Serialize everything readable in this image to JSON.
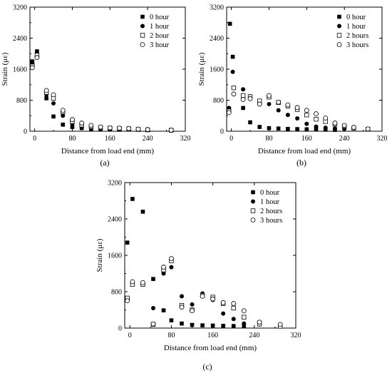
{
  "chart_data": [
    {
      "type": "scatter",
      "panel_label": "(a)",
      "xlabel": "Distance from load end (mm)",
      "ylabel": "Strain (με)",
      "xlim": [
        -10,
        320
      ],
      "ylim": [
        0,
        3200
      ],
      "xticks": [
        "0",
        "80",
        "160",
        "240",
        "320"
      ],
      "yticks": [
        "0",
        "800",
        "1600",
        "2400",
        "3200"
      ],
      "legend_position": "top-right",
      "series": [
        {
          "name": "0 hour",
          "marker": "filled-square",
          "points": [
            [
              -5,
              1800
            ],
            [
              5,
              2060
            ],
            [
              25,
              850
            ],
            [
              40,
              380
            ],
            [
              60,
              170
            ],
            [
              80,
              110
            ],
            [
              100,
              80
            ],
            [
              120,
              60
            ],
            [
              140,
              50
            ],
            [
              160,
              45
            ],
            [
              180,
              40
            ]
          ]
        },
        {
          "name": "1 hour",
          "marker": "filled-circle",
          "points": [
            [
              -5,
              1760
            ],
            [
              5,
              2000
            ],
            [
              25,
              950
            ],
            [
              40,
              720
            ],
            [
              60,
              400
            ],
            [
              80,
              200
            ],
            [
              100,
              120
            ],
            [
              120,
              90
            ],
            [
              140,
              70
            ],
            [
              160,
              60
            ],
            [
              180,
              50
            ],
            [
              200,
              45
            ]
          ]
        },
        {
          "name": "2 hour",
          "marker": "open-square",
          "points": [
            [
              -5,
              1680
            ],
            [
              5,
              1960
            ],
            [
              25,
              1000
            ],
            [
              40,
              850
            ],
            [
              60,
              500
            ],
            [
              80,
              250
            ],
            [
              100,
              160
            ],
            [
              120,
              120
            ],
            [
              140,
              95
            ],
            [
              160,
              80
            ],
            [
              180,
              70
            ],
            [
              200,
              60
            ],
            [
              220,
              45
            ],
            [
              240,
              35
            ],
            [
              290,
              25
            ]
          ]
        },
        {
          "name": "3 hour",
          "marker": "open-circle",
          "points": [
            [
              -5,
              1640
            ],
            [
              5,
              1900
            ],
            [
              25,
              1050
            ],
            [
              40,
              940
            ],
            [
              60,
              540
            ],
            [
              80,
              300
            ],
            [
              100,
              210
            ],
            [
              120,
              150
            ],
            [
              140,
              110
            ],
            [
              160,
              90
            ],
            [
              180,
              80
            ],
            [
              200,
              70
            ],
            [
              220,
              55
            ],
            [
              240,
              45
            ],
            [
              290,
              30
            ]
          ]
        }
      ]
    },
    {
      "type": "scatter",
      "panel_label": "(b)",
      "xlabel": "Distance from load end (mm)",
      "ylabel": "Strain (με)",
      "xlim": [
        -10,
        320
      ],
      "ylim": [
        0,
        3200
      ],
      "xticks": [
        "0",
        "80",
        "160",
        "240",
        "320"
      ],
      "yticks": [
        "0",
        "800",
        "1600",
        "2400",
        "3200"
      ],
      "legend_position": "top-right",
      "series": [
        {
          "name": "0 hour",
          "marker": "filled-square",
          "points": [
            [
              -3,
              2770
            ],
            [
              3,
              1920
            ],
            [
              25,
              600
            ],
            [
              40,
              230
            ],
            [
              60,
              110
            ],
            [
              80,
              80
            ],
            [
              100,
              70
            ],
            [
              120,
              60
            ],
            [
              140,
              55
            ],
            [
              160,
              50
            ],
            [
              180,
              45
            ],
            [
              200,
              40
            ],
            [
              220,
              35
            ]
          ]
        },
        {
          "name": "1 hour",
          "marker": "filled-circle",
          "points": [
            [
              -5,
              600
            ],
            [
              3,
              1530
            ],
            [
              25,
              1080
            ],
            [
              40,
              900
            ],
            [
              60,
              750
            ],
            [
              80,
              700
            ],
            [
              100,
              540
            ],
            [
              120,
              420
            ],
            [
              140,
              330
            ],
            [
              160,
              190
            ],
            [
              180,
              120
            ],
            [
              200,
              90
            ],
            [
              220,
              70
            ],
            [
              240,
              60
            ]
          ]
        },
        {
          "name": "2 hours",
          "marker": "open-square",
          "points": [
            [
              -5,
              520
            ],
            [
              5,
              1120
            ],
            [
              25,
              920
            ],
            [
              40,
              890
            ],
            [
              60,
              780
            ],
            [
              80,
              880
            ],
            [
              100,
              740
            ],
            [
              120,
              650
            ],
            [
              140,
              560
            ],
            [
              160,
              420
            ],
            [
              180,
              310
            ],
            [
              200,
              250
            ],
            [
              220,
              180
            ],
            [
              240,
              130
            ],
            [
              260,
              80
            ],
            [
              290,
              50
            ]
          ]
        },
        {
          "name": "3 hours",
          "marker": "open-circle",
          "points": [
            [
              -5,
              480
            ],
            [
              5,
              960
            ],
            [
              25,
              820
            ],
            [
              40,
              840
            ],
            [
              60,
              700
            ],
            [
              80,
              920
            ],
            [
              100,
              750
            ],
            [
              120,
              680
            ],
            [
              140,
              610
            ],
            [
              160,
              540
            ],
            [
              180,
              450
            ],
            [
              200,
              340
            ],
            [
              220,
              210
            ],
            [
              240,
              150
            ],
            [
              260,
              100
            ],
            [
              290,
              60
            ]
          ]
        }
      ]
    },
    {
      "type": "scatter",
      "panel_label": "(c)",
      "xlabel": "Distance from load end (mm)",
      "ylabel": "Strain (με)",
      "xlim": [
        -10,
        320
      ],
      "ylim": [
        0,
        3200
      ],
      "xticks": [
        "0",
        "80",
        "160",
        "240",
        "320"
      ],
      "yticks": [
        "0",
        "800",
        "1600",
        "2400",
        "3200"
      ],
      "legend_position": "top-right",
      "series": [
        {
          "name": "0 hour",
          "marker": "filled-square",
          "points": [
            [
              -5,
              1880
            ],
            [
              5,
              2840
            ],
            [
              25,
              2560
            ],
            [
              45,
              1080
            ],
            [
              65,
              390
            ],
            [
              80,
              170
            ],
            [
              100,
              100
            ],
            [
              120,
              70
            ],
            [
              140,
              60
            ],
            [
              160,
              55
            ],
            [
              180,
              50
            ],
            [
              200,
              45
            ],
            [
              220,
              40
            ]
          ]
        },
        {
          "name": "1 hour",
          "marker": "filled-circle",
          "points": [
            [
              -5,
              620
            ],
            [
              5,
              1000
            ],
            [
              25,
              980
            ],
            [
              45,
              440
            ],
            [
              65,
              1200
            ],
            [
              80,
              1340
            ],
            [
              100,
              700
            ],
            [
              120,
              520
            ],
            [
              140,
              760
            ],
            [
              160,
              620
            ],
            [
              180,
              320
            ],
            [
              200,
              200
            ],
            [
              220,
              100
            ],
            [
              250,
              80
            ],
            [
              290,
              60
            ]
          ]
        },
        {
          "name": "2 hours",
          "marker": "open-square",
          "points": [
            [
              -5,
              660
            ],
            [
              5,
              960
            ],
            [
              25,
              960
            ],
            [
              45,
              80
            ],
            [
              65,
              1280
            ],
            [
              80,
              1480
            ],
            [
              100,
              500
            ],
            [
              120,
              400
            ],
            [
              140,
              720
            ],
            [
              160,
              680
            ],
            [
              180,
              540
            ],
            [
              200,
              440
            ],
            [
              220,
              240
            ],
            [
              250,
              90
            ],
            [
              290,
              40
            ]
          ]
        },
        {
          "name": "3 hours",
          "marker": "open-circle",
          "points": [
            [
              -5,
              600
            ],
            [
              5,
              1020
            ],
            [
              25,
              1000
            ],
            [
              45,
              90
            ],
            [
              65,
              1340
            ],
            [
              80,
              1530
            ],
            [
              100,
              460
            ],
            [
              120,
              380
            ],
            [
              140,
              700
            ],
            [
              160,
              640
            ],
            [
              180,
              560
            ],
            [
              200,
              540
            ],
            [
              220,
              380
            ],
            [
              250,
              130
            ],
            [
              290,
              80
            ]
          ]
        }
      ]
    }
  ]
}
